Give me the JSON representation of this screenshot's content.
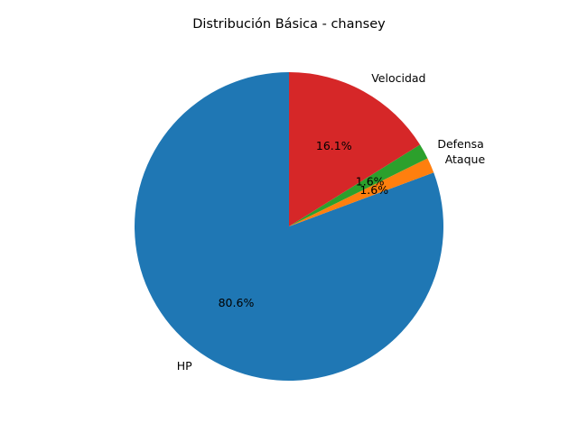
{
  "chart_data": {
    "type": "pie",
    "title": "Distribución Básica - chansey",
    "start_angle_deg": 90,
    "direction": "counterclockwise",
    "slices": [
      {
        "label": "HP",
        "value": 80.6,
        "pct_label": "80.6%",
        "color": "#1f77b4"
      },
      {
        "label": "Ataque",
        "value": 1.6,
        "pct_label": "1.6%",
        "color": "#ff7f0e"
      },
      {
        "label": "Defensa",
        "value": 1.6,
        "pct_label": "1.6%",
        "color": "#2ca02c"
      },
      {
        "label": "Velocidad",
        "value": 16.1,
        "pct_label": "16.1%",
        "color": "#d62728"
      }
    ]
  }
}
